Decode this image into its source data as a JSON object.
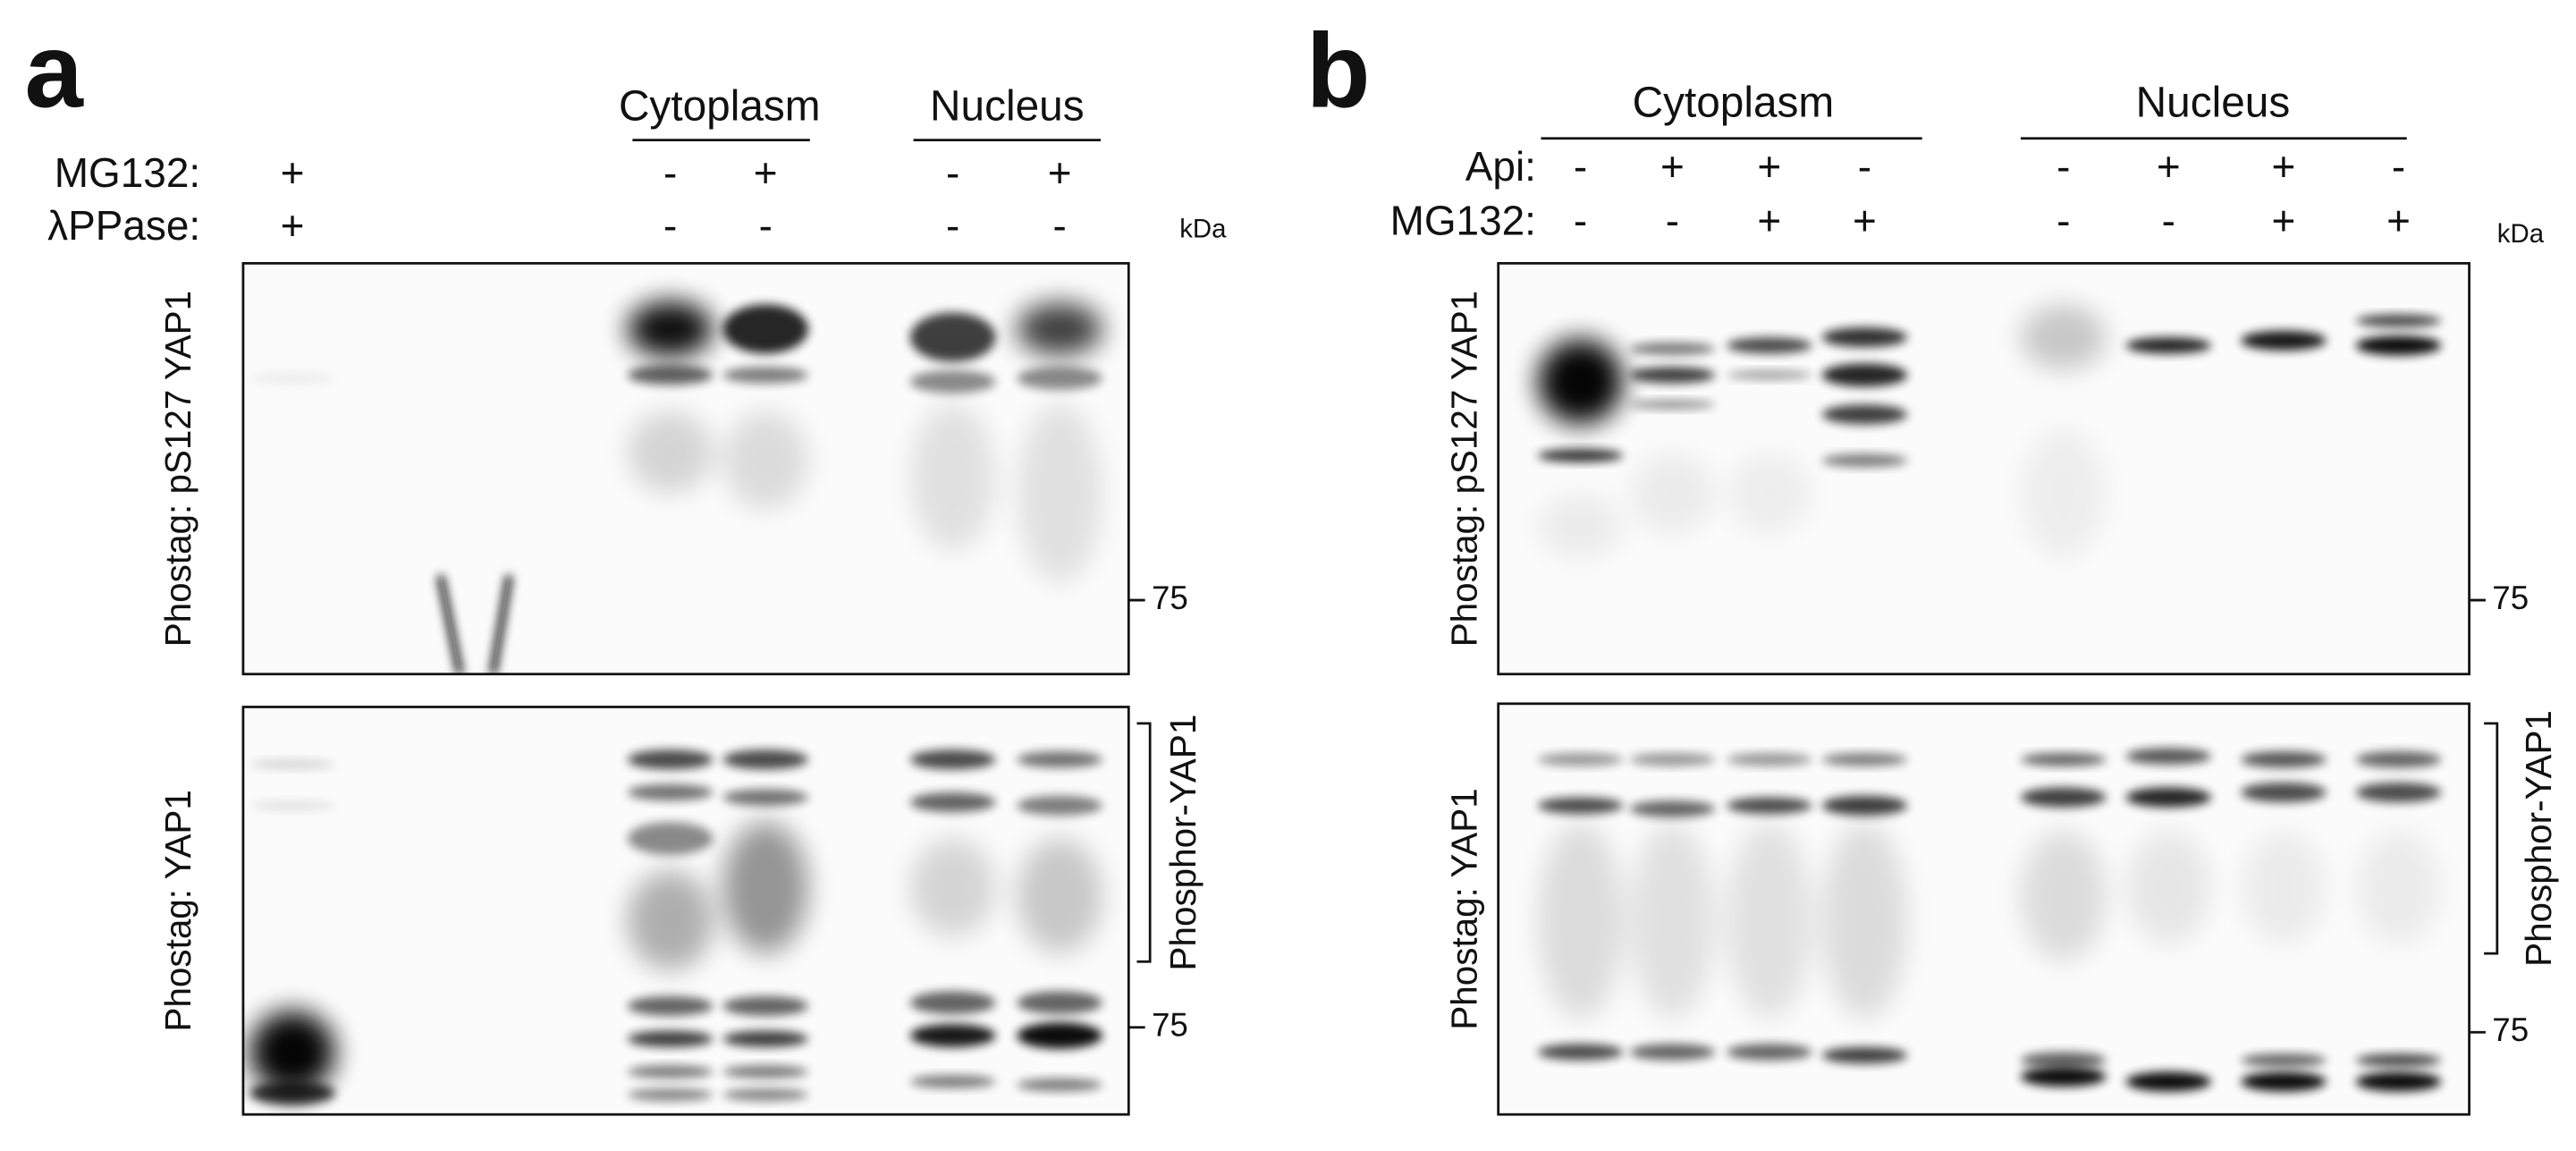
{
  "panels": [
    {
      "letter": "a",
      "groups": [
        "Cytoplasm",
        "Nucleus"
      ],
      "rows": [
        {
          "label": "MG132:",
          "symbols": [
            "+",
            "-",
            "+",
            "-",
            "+"
          ]
        },
        {
          "label": "λPPase:",
          "symbols": [
            "+",
            "-",
            "-",
            "-",
            "-"
          ]
        }
      ],
      "unit": "kDa",
      "blots": [
        {
          "label": "Phostag: pS127 YAP1",
          "marker": 75
        },
        {
          "label": "Phostag: YAP1",
          "marker": 75,
          "bracket": "Phosphor-YAP1"
        }
      ]
    },
    {
      "letter": "b",
      "groups": [
        "Cytoplasm",
        "Nucleus"
      ],
      "rows": [
        {
          "label": "Api:",
          "symbols": [
            "-",
            "+",
            "+",
            "-",
            "-",
            "+",
            "+",
            "-"
          ]
        },
        {
          "label": "MG132:",
          "symbols": [
            "-",
            "-",
            "+",
            "+",
            "-",
            "-",
            "+",
            "+"
          ]
        }
      ],
      "unit": "kDa",
      "blots": [
        {
          "label": "Phostag: pS127 YAP1",
          "marker": 75
        },
        {
          "label": "Phostag: YAP1",
          "marker": 75,
          "bracket": "Phosphor-YAP1"
        }
      ]
    }
  ]
}
